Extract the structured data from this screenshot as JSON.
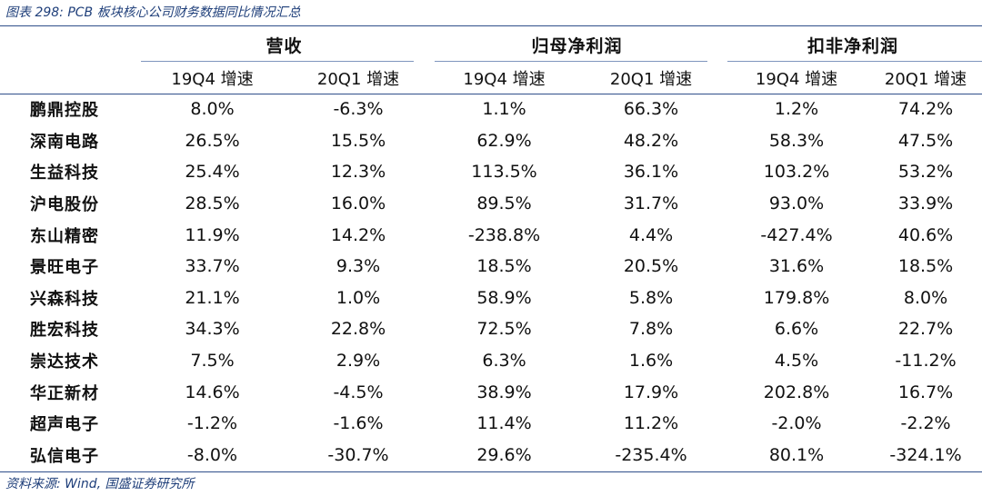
{
  "caption": "图表 298:  PCB 板块核心公司财务数据同比情况汇总",
  "table": {
    "groups": [
      "营收",
      "归母净利润",
      "扣非净利润"
    ],
    "subheaders": [
      "19Q4 增速",
      "20Q1 增速",
      "19Q4 增速",
      "20Q1 增速",
      "19Q4 增速",
      "20Q1 增速"
    ],
    "rows": [
      {
        "name": "鹏鼎控股",
        "values": [
          "8.0%",
          "-6.3%",
          "1.1%",
          "66.3%",
          "1.2%",
          "74.2%"
        ]
      },
      {
        "name": "深南电路",
        "values": [
          "26.5%",
          "15.5%",
          "62.9%",
          "48.2%",
          "58.3%",
          "47.5%"
        ]
      },
      {
        "name": "生益科技",
        "values": [
          "25.4%",
          "12.3%",
          "113.5%",
          "36.1%",
          "103.2%",
          "53.2%"
        ]
      },
      {
        "name": "沪电股份",
        "values": [
          "28.5%",
          "16.0%",
          "89.5%",
          "31.7%",
          "93.0%",
          "33.9%"
        ]
      },
      {
        "name": "东山精密",
        "values": [
          "11.9%",
          "14.2%",
          "-238.8%",
          "4.4%",
          "-427.4%",
          "40.6%"
        ]
      },
      {
        "name": "景旺电子",
        "values": [
          "33.7%",
          "9.3%",
          "18.5%",
          "20.5%",
          "31.6%",
          "18.5%"
        ]
      },
      {
        "name": "兴森科技",
        "values": [
          "21.1%",
          "1.0%",
          "58.9%",
          "5.8%",
          "179.8%",
          "8.0%"
        ]
      },
      {
        "name": "胜宏科技",
        "values": [
          "34.3%",
          "22.8%",
          "72.5%",
          "7.8%",
          "6.6%",
          "22.7%"
        ]
      },
      {
        "name": "崇达技术",
        "values": [
          "7.5%",
          "2.9%",
          "6.3%",
          "1.6%",
          "4.5%",
          "-11.2%"
        ]
      },
      {
        "name": "华正新材",
        "values": [
          "14.6%",
          "-4.5%",
          "38.9%",
          "17.9%",
          "202.8%",
          "16.7%"
        ]
      },
      {
        "name": "超声电子",
        "values": [
          "-1.2%",
          "-1.6%",
          "11.4%",
          "11.2%",
          "-2.0%",
          "-2.2%"
        ]
      },
      {
        "name": "弘信电子",
        "values": [
          "-8.0%",
          "-30.7%",
          "29.6%",
          "-235.4%",
          "80.1%",
          "-324.1%"
        ]
      }
    ]
  },
  "source": "资料来源:  Wind,  国盛证券研究所"
}
